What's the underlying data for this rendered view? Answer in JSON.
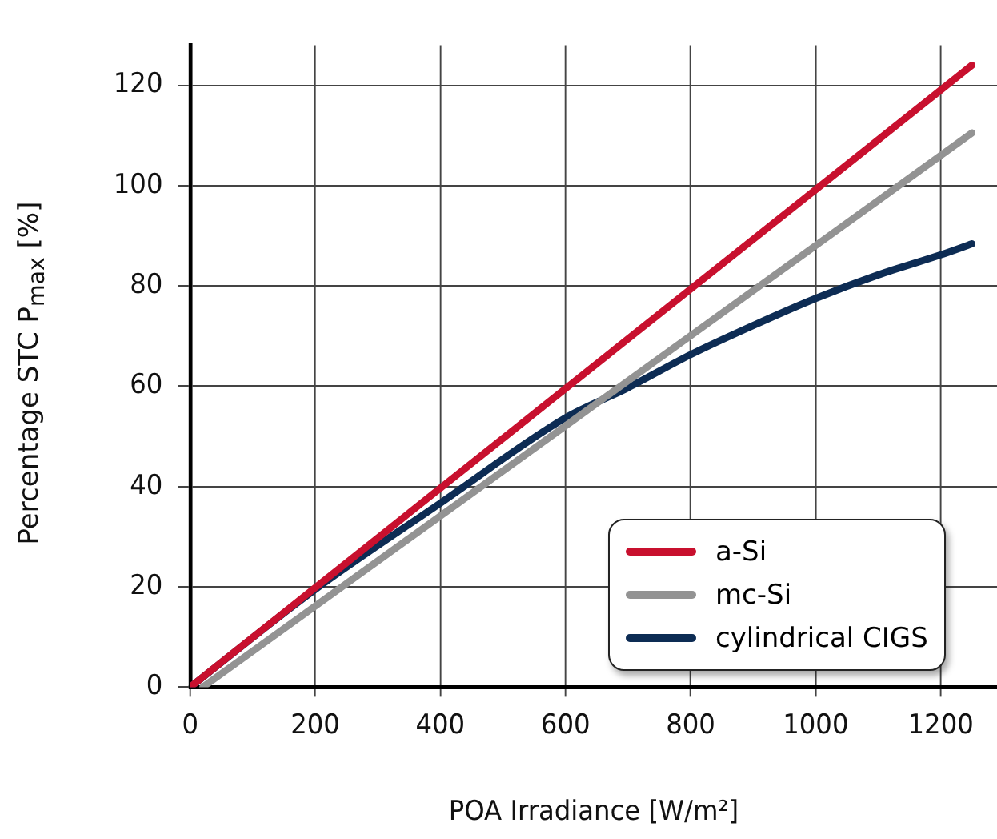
{
  "chart_data": {
    "type": "line",
    "xlabel": "POA Irradiance [W/m²]",
    "ylabel": "Percentage STC P$_{max}$ [%]",
    "xlim": [
      0,
      1290
    ],
    "ylim": [
      0,
      128
    ],
    "xticks": [
      0,
      200,
      400,
      600,
      800,
      1000,
      1200
    ],
    "yticks": [
      0,
      20,
      40,
      60,
      80,
      100,
      120
    ],
    "grid": true,
    "legend": "bottom right",
    "marker": "none",
    "line_style": "solid",
    "series": [
      {
        "name": "a-Si",
        "color": "#c8102e",
        "x": [
          0,
          1250
        ],
        "values": [
          0,
          124
        ]
      },
      {
        "name": "mc-Si",
        "color": "#939393",
        "x": [
          20,
          1250
        ],
        "values": [
          0,
          110.5
        ]
      },
      {
        "name": "cylindrical CIGS",
        "color": "#0d2c54",
        "x": [
          0,
          200,
          400,
          600,
          700,
          800,
          900,
          1000,
          1100,
          1200,
          1250
        ],
        "values": [
          0,
          19.5,
          36.7,
          53.7,
          59.7,
          66.3,
          72.1,
          77.5,
          82.2,
          86.2,
          88.4
        ]
      }
    ]
  }
}
